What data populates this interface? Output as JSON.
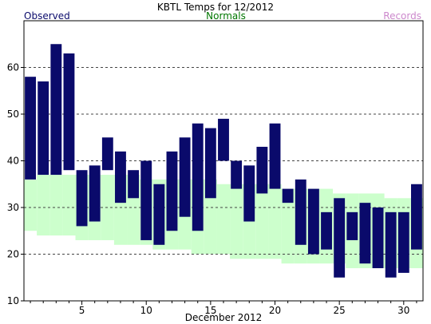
{
  "colors": {
    "observed": "#0a0a6b",
    "normals_band": "#ccffcc",
    "normals_label": "#007700",
    "records_label": "#cc88cc",
    "grid": "#444444",
    "axis": "#000000"
  },
  "legend": {
    "observed": "Observed",
    "normals": "Normals",
    "records": "Records"
  },
  "chart_data": {
    "type": "bar",
    "title": "KBTL Temps for 12/2012",
    "xlabel": "December 2012",
    "ylabel": "",
    "ylim": [
      10,
      70
    ],
    "xlim": [
      0.5,
      31.5
    ],
    "y_ticks": [
      10,
      20,
      30,
      40,
      50,
      60
    ],
    "x_ticks": [
      5,
      10,
      15,
      20,
      25,
      30
    ],
    "grid": "horizontal dashed at 20,30,40,50,60",
    "legend_placement": "top",
    "days": [
      1,
      2,
      3,
      4,
      5,
      6,
      7,
      8,
      9,
      10,
      11,
      12,
      13,
      14,
      15,
      16,
      17,
      18,
      19,
      20,
      21,
      22,
      23,
      24,
      25,
      26,
      27,
      28,
      29,
      30,
      31
    ],
    "series": [
      {
        "name": "Observed",
        "kind": "range-bar",
        "low": [
          36,
          37,
          37,
          38,
          26,
          27,
          38,
          31,
          32,
          23,
          22,
          25,
          28,
          25,
          32,
          40,
          34,
          27,
          33,
          34,
          31,
          22,
          20,
          21,
          15,
          23,
          18,
          17,
          15,
          16,
          21
        ],
        "high": [
          58,
          57,
          65,
          63,
          38,
          39,
          45,
          42,
          38,
          40,
          35,
          42,
          45,
          48,
          47,
          49,
          40,
          39,
          43,
          48,
          34,
          36,
          34,
          29,
          32,
          29,
          31,
          30,
          29,
          29,
          35
        ]
      },
      {
        "name": "Normals",
        "kind": "band",
        "low": [
          25,
          24,
          24,
          24,
          23,
          23,
          23,
          22,
          22,
          22,
          21,
          21,
          21,
          20,
          20,
          20,
          19,
          19,
          19,
          19,
          18,
          18,
          18,
          18,
          18,
          17,
          17,
          17,
          17,
          17,
          17
        ],
        "high": [
          36,
          37,
          37,
          37,
          37,
          37,
          37,
          37,
          37,
          36,
          36,
          36,
          36,
          36,
          36,
          35,
          35,
          35,
          35,
          35,
          34,
          34,
          34,
          34,
          33,
          33,
          33,
          33,
          32,
          32,
          32
        ]
      }
    ]
  }
}
